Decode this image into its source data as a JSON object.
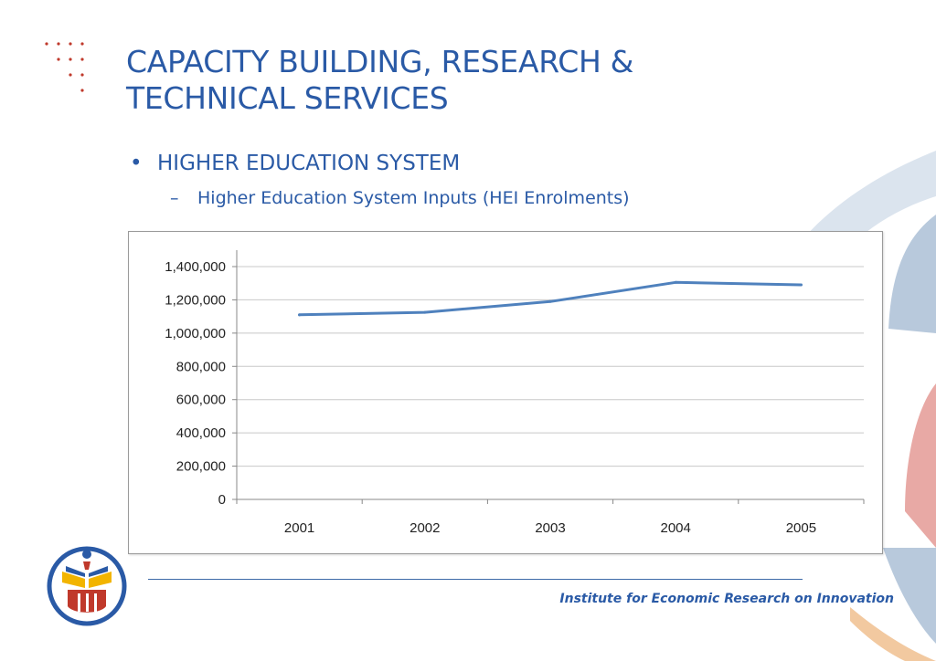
{
  "slide": {
    "title_line1": "CAPACITY BUILDING, RESEARCH &",
    "title_line2": "TECHNICAL SERVICES",
    "bullet": "HIGHER EDUCATION SYSTEM",
    "bullet_mark": "•",
    "sub_bullet": "Higher Education System Inputs (HEI Enrolments)",
    "sub_bullet_mark": "–",
    "footer": "Institute for Economic Research on Innovation"
  },
  "colors": {
    "title": "#2a5aa6",
    "line": "#4f81bd",
    "grid": "#c8c8c8",
    "deco_blue": "#b8c9dc",
    "deco_red": "#e8a9a5",
    "deco_orange": "#f2c9a0",
    "dots": "#c0392b"
  },
  "chart_data": {
    "type": "line",
    "categories": [
      "2001",
      "2002",
      "2003",
      "2004",
      "2005"
    ],
    "series": [
      {
        "values": [
          1110000,
          1125000,
          1190000,
          1305000,
          1290000
        ]
      }
    ],
    "title": "",
    "xlabel": "",
    "ylabel": "",
    "ylim": [
      0,
      1400000
    ],
    "yticks": [
      0,
      200000,
      400000,
      600000,
      800000,
      1000000,
      1200000,
      1400000
    ],
    "ytick_labels": [
      "0",
      "200,000",
      "400,000",
      "600,000",
      "800,000",
      "1,000,000",
      "1,200,000",
      "1,400,000"
    ],
    "grid": true,
    "legend": "none"
  }
}
